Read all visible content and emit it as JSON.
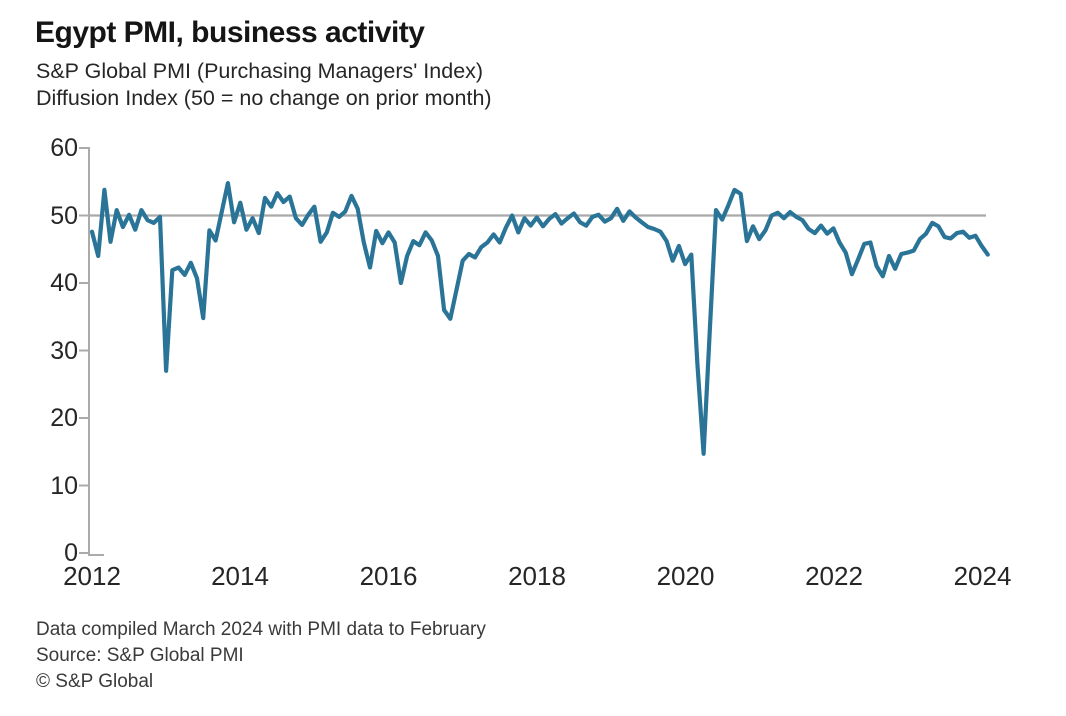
{
  "header": {
    "title": "Egypt PMI, business activity",
    "subtitle_line1": "S&P Global PMI (Purchasing Managers' Index)",
    "subtitle_line2": "Diffusion Index (50 = no change on prior month)"
  },
  "footer": {
    "line1": "Data compiled March 2024 with PMI data to February",
    "line2": "Source: S&P Global PMI",
    "line3": "© S&P Global"
  },
  "chart_data": {
    "type": "line",
    "title": "Egypt PMI, business activity",
    "series_name": "Business activity diffusion index",
    "frequency": "monthly",
    "x_start": "2012-01",
    "x_end": "2024-02",
    "ylim": [
      0,
      60
    ],
    "reference_line": 50,
    "grid": "off",
    "legend": "none",
    "yticks": [
      "60",
      "50",
      "40",
      "30",
      "20",
      "10",
      "0"
    ],
    "xticks": [
      "2012",
      "2014",
      "2016",
      "2018",
      "2020",
      "2022",
      "2024"
    ],
    "line_color": "#2a7498",
    "axis_color": "#ababab",
    "reference_line_color": "#a9a9a9",
    "values": [
      47.6,
      44.0,
      53.8,
      46.1,
      50.8,
      48.3,
      50.1,
      47.9,
      50.8,
      49.3,
      48.9,
      49.8,
      27.0,
      41.9,
      42.3,
      41.2,
      43.0,
      40.7,
      34.8,
      47.8,
      46.3,
      50.5,
      54.8,
      49.0,
      51.9,
      47.9,
      49.6,
      47.4,
      52.6,
      51.3,
      53.3,
      52.0,
      52.8,
      49.6,
      48.6,
      50.1,
      51.3,
      46.1,
      47.5,
      50.4,
      49.8,
      50.6,
      52.9,
      51.0,
      46.0,
      42.3,
      47.7,
      45.9,
      47.5,
      46.0,
      40.0,
      44.0,
      46.2,
      45.6,
      47.5,
      46.3,
      44.0,
      36.0,
      34.7,
      39.0,
      43.3,
      44.3,
      43.8,
      45.3,
      46.0,
      47.2,
      46.0,
      48.2,
      50.0,
      47.5,
      49.6,
      48.5,
      49.7,
      48.4,
      49.5,
      50.2,
      48.8,
      49.6,
      50.3,
      49.0,
      48.5,
      49.8,
      50.1,
      49.1,
      49.6,
      51.0,
      49.2,
      50.6,
      49.7,
      49.0,
      48.3,
      48.0,
      47.6,
      46.2,
      43.3,
      45.5,
      42.8,
      44.2,
      28.0,
      14.7,
      33.0,
      50.8,
      49.4,
      51.5,
      53.8,
      53.2,
      46.2,
      48.4,
      46.5,
      47.8,
      50.0,
      50.4,
      49.6,
      50.5,
      49.8,
      49.3,
      48.0,
      47.4,
      48.5,
      47.3,
      48.1,
      46.0,
      44.5,
      41.3,
      43.5,
      45.8,
      46.0,
      42.5,
      41.0,
      44.0,
      42.1,
      44.3,
      44.5,
      44.8,
      46.5,
      47.3,
      48.9,
      48.4,
      46.8,
      46.6,
      47.4,
      47.6,
      46.7,
      47.0,
      45.5,
      44.2
    ]
  }
}
